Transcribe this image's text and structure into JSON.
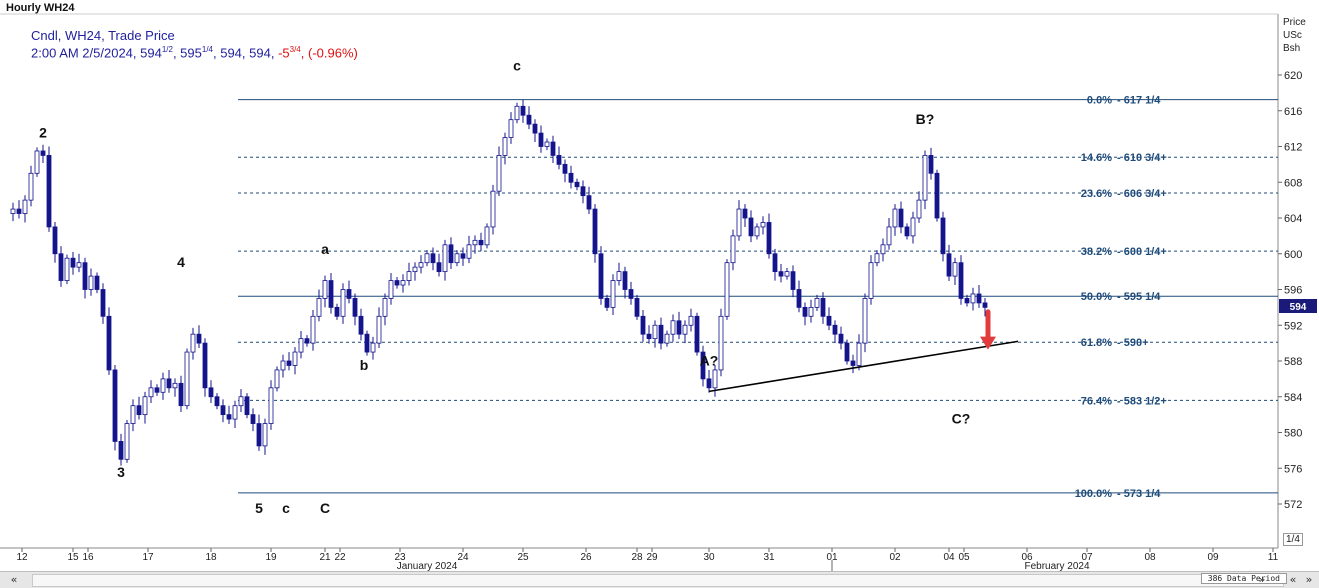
{
  "window": {
    "title": "Hourly WH24"
  },
  "legend": {
    "line1": "Cndl, WH24, Trade Price",
    "line2_prefix": "2:00 AM 2/5/2024, 594",
    "line2_open_frac": "1/2",
    "line2_sep1": ", 595",
    "line2_high_frac": "1/4",
    "line2_rest": ", 594, 594, ",
    "line2_change": "-5",
    "line2_change_frac": "3/4",
    "line2_sep2": ", ",
    "line2_pct": "(-0.96%)"
  },
  "axis_header": {
    "l1": "Price",
    "l2": "USc",
    "l3": "Bsh"
  },
  "current_price_marker": "594",
  "zoom_label": "1/4",
  "status": "386 Data Period",
  "scroll_buttons": {
    "left": "«",
    "right1": "»",
    "right2": "«",
    "right3": "»"
  },
  "colors": {
    "candle": "#14148c",
    "fib_line": "#1e4b7a",
    "fib_text": "#1e4b7a",
    "trend": "#000000",
    "arrow": "#e23b3b",
    "marker_bg": "#1a1a7a"
  },
  "chart_data": {
    "type": "candlestick",
    "title": "Hourly WH24",
    "y_axis": {
      "label": "Price USc Bsh",
      "range": [
        570,
        622
      ],
      "ticks": [
        572,
        576,
        580,
        584,
        588,
        592,
        596,
        600,
        604,
        608,
        612,
        616,
        620
      ]
    },
    "x_axis": {
      "day_ticks": [
        "12",
        "15",
        "16",
        "17",
        "18",
        "19",
        "21",
        "22",
        "23",
        "24",
        "25",
        "26",
        "28",
        "29",
        "30",
        "31",
        "01",
        "02",
        "04",
        "05",
        "06",
        "07",
        "08",
        "09",
        "11"
      ],
      "month_labels": [
        "January 2024",
        "February 2024"
      ]
    },
    "close_path": [
      [
        0,
        604.5
      ],
      [
        2,
        605
      ],
      [
        4,
        604.5
      ],
      [
        6,
        606
      ],
      [
        8,
        609
      ],
      [
        10,
        611.5
      ],
      [
        12,
        611
      ],
      [
        14,
        603
      ],
      [
        16,
        600
      ],
      [
        18,
        597
      ],
      [
        20,
        599.5
      ],
      [
        22,
        598.5
      ],
      [
        24,
        599
      ],
      [
        26,
        596
      ],
      [
        28,
        597.5
      ],
      [
        30,
        596
      ],
      [
        32,
        593
      ],
      [
        34,
        587
      ],
      [
        36,
        579
      ],
      [
        38,
        577
      ],
      [
        40,
        581
      ],
      [
        42,
        583
      ],
      [
        44,
        582
      ],
      [
        46,
        584
      ],
      [
        48,
        585
      ],
      [
        50,
        584.5
      ],
      [
        52,
        586
      ],
      [
        54,
        585
      ],
      [
        56,
        585.5
      ],
      [
        58,
        583
      ],
      [
        60,
        589
      ],
      [
        62,
        591
      ],
      [
        64,
        590
      ],
      [
        66,
        585
      ],
      [
        68,
        584
      ],
      [
        70,
        583
      ],
      [
        72,
        582
      ],
      [
        74,
        581.5
      ],
      [
        76,
        583
      ],
      [
        78,
        584
      ],
      [
        80,
        582
      ],
      [
        82,
        581
      ],
      [
        84,
        578.5
      ],
      [
        86,
        581
      ],
      [
        88,
        585
      ],
      [
        90,
        587
      ],
      [
        92,
        588
      ],
      [
        94,
        587.5
      ],
      [
        96,
        589
      ],
      [
        98,
        590.5
      ],
      [
        100,
        590
      ],
      [
        102,
        593
      ],
      [
        104,
        595
      ],
      [
        106,
        597
      ],
      [
        108,
        594
      ],
      [
        110,
        593
      ],
      [
        112,
        596
      ],
      [
        114,
        595
      ],
      [
        116,
        593
      ],
      [
        118,
        591
      ],
      [
        120,
        589
      ],
      [
        122,
        590
      ],
      [
        124,
        593
      ],
      [
        126,
        595
      ],
      [
        128,
        597
      ],
      [
        130,
        596.5
      ],
      [
        132,
        597
      ],
      [
        134,
        598
      ],
      [
        136,
        598.5
      ],
      [
        138,
        599
      ],
      [
        140,
        600
      ],
      [
        142,
        599
      ],
      [
        144,
        598
      ],
      [
        146,
        601
      ],
      [
        148,
        599
      ],
      [
        150,
        600
      ],
      [
        152,
        599.5
      ],
      [
        154,
        601
      ],
      [
        156,
        601.5
      ],
      [
        158,
        601
      ],
      [
        160,
        603
      ],
      [
        162,
        607
      ],
      [
        164,
        611
      ],
      [
        166,
        613
      ],
      [
        168,
        615
      ],
      [
        170,
        616.5
      ],
      [
        172,
        615.5
      ],
      [
        174,
        614.5
      ],
      [
        176,
        613.5
      ],
      [
        178,
        612
      ],
      [
        180,
        612.5
      ],
      [
        182,
        611
      ],
      [
        184,
        610
      ],
      [
        186,
        609
      ],
      [
        188,
        608
      ],
      [
        190,
        607.5
      ],
      [
        192,
        606.5
      ],
      [
        194,
        605
      ],
      [
        196,
        600
      ],
      [
        198,
        595
      ],
      [
        200,
        594
      ],
      [
        202,
        597
      ],
      [
        204,
        598
      ],
      [
        206,
        596
      ],
      [
        208,
        595
      ],
      [
        210,
        593
      ],
      [
        212,
        591
      ],
      [
        214,
        590.5
      ],
      [
        216,
        592
      ],
      [
        218,
        590
      ],
      [
        220,
        591
      ],
      [
        222,
        592.5
      ],
      [
        224,
        591
      ],
      [
        226,
        592
      ],
      [
        228,
        593
      ],
      [
        230,
        589
      ],
      [
        232,
        586
      ],
      [
        234,
        585
      ],
      [
        236,
        587
      ],
      [
        238,
        593
      ],
      [
        240,
        599
      ],
      [
        242,
        602
      ],
      [
        244,
        605
      ],
      [
        246,
        604
      ],
      [
        248,
        602
      ],
      [
        250,
        603
      ],
      [
        252,
        603.5
      ],
      [
        254,
        600
      ],
      [
        256,
        598
      ],
      [
        258,
        597.5
      ],
      [
        260,
        598
      ],
      [
        262,
        596
      ],
      [
        264,
        594
      ],
      [
        266,
        593
      ],
      [
        268,
        594
      ],
      [
        270,
        595
      ],
      [
        272,
        593
      ],
      [
        274,
        592
      ],
      [
        276,
        591
      ],
      [
        278,
        590
      ],
      [
        280,
        588
      ],
      [
        282,
        587.5
      ],
      [
        284,
        590
      ],
      [
        286,
        595
      ],
      [
        288,
        599
      ],
      [
        290,
        600
      ],
      [
        292,
        601
      ],
      [
        294,
        603
      ],
      [
        296,
        605
      ],
      [
        298,
        603
      ],
      [
        300,
        602
      ],
      [
        302,
        604
      ],
      [
        304,
        606
      ],
      [
        306,
        611
      ],
      [
        308,
        609
      ],
      [
        310,
        604
      ],
      [
        312,
        600
      ],
      [
        314,
        597.5
      ],
      [
        316,
        599
      ],
      [
        318,
        595
      ],
      [
        320,
        594.5
      ],
      [
        322,
        595.5
      ],
      [
        324,
        594.5
      ],
      [
        326,
        594
      ]
    ],
    "fibonacci": [
      {
        "ratio": "0.0%",
        "price": "617 1/4",
        "value": 617.25,
        "style": "solid"
      },
      {
        "ratio": "14.6%",
        "price": "610 3/4+",
        "value": 610.8,
        "style": "dashed"
      },
      {
        "ratio": "23.6%",
        "price": "606 3/4+",
        "value": 606.8,
        "style": "dashed"
      },
      {
        "ratio": "38.2%",
        "price": "600 1/4+",
        "value": 600.3,
        "style": "dashed"
      },
      {
        "ratio": "50.0%",
        "price": "595 1/4",
        "value": 595.25,
        "style": "solid"
      },
      {
        "ratio": "61.8%",
        "price": "590+",
        "value": 590.1,
        "style": "dashed"
      },
      {
        "ratio": "76.4%",
        "price": "583 1/2+",
        "value": 583.6,
        "style": "dashed"
      },
      {
        "ratio": "100.0%",
        "price": "573 1/4",
        "value": 573.25,
        "style": "solid"
      }
    ],
    "wave_labels": [
      {
        "text": "2",
        "bar": 12,
        "price": 613,
        "bold": true
      },
      {
        "text": "3",
        "bar": 38,
        "price": 575,
        "bold": true
      },
      {
        "text": "4",
        "bar": 58,
        "price": 598.5,
        "bold": true
      },
      {
        "text": "5",
        "bar": 84,
        "price": 571,
        "bold": true
      },
      {
        "text": "c",
        "bar": 93,
        "price": 571,
        "bold": true
      },
      {
        "text": "C",
        "bar": 106,
        "price": 571,
        "bold": true
      },
      {
        "text": "a",
        "bar": 106,
        "price": 600,
        "bold": true
      },
      {
        "text": "b",
        "bar": 119,
        "price": 587,
        "bold": true
      },
      {
        "text": "c",
        "bar": 170,
        "price": 620.5,
        "bold": true
      },
      {
        "text": "A?",
        "bar": 234,
        "price": 587.5,
        "bold": true
      },
      {
        "text": "B?",
        "bar": 306,
        "price": 614.5,
        "bold": true
      },
      {
        "text": "C?",
        "bar": 318,
        "price": 581,
        "bold": true
      }
    ],
    "trendline": {
      "from": {
        "bar": 234,
        "price": 584.6
      },
      "to": {
        "bar": 337,
        "price": 590.2
      }
    },
    "arrow": {
      "bar": 327,
      "from_price": 593.5,
      "to_price": 589.5
    },
    "grid": false,
    "legend_position": "top-left"
  }
}
